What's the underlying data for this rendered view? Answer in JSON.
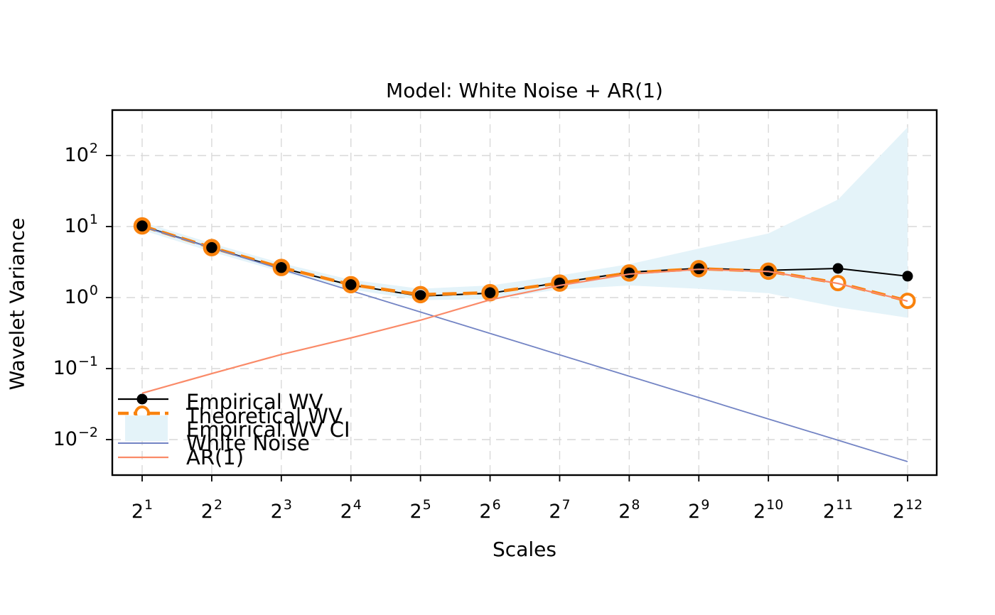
{
  "colors": {
    "empirical": "#000000",
    "theoretical": "#F9820D",
    "ci_band": "#E4F3F9",
    "white_noise": "#7384C4",
    "ar1": "#FA8A68",
    "gridline": "#D9D9D9",
    "frame": "#000000"
  },
  "chart_data": {
    "type": "line",
    "title": "Model: White Noise + AR(1)",
    "xlabel": "Scales",
    "ylabel": "Wavelet Variance",
    "x_scale": "log2",
    "y_scale": "log10",
    "grid": "both-dashed",
    "ylim": [
      0.0032,
      440
    ],
    "x_exponents": [
      1,
      2,
      3,
      4,
      5,
      6,
      7,
      8,
      9,
      10,
      11,
      12
    ],
    "x_tick_labels": {
      "base": "2",
      "exponents": [
        "1",
        "2",
        "3",
        "4",
        "5",
        "6",
        "7",
        "8",
        "9",
        "10",
        "11",
        "12"
      ]
    },
    "y_tick_labels": {
      "base": "10",
      "exponents": [
        "2",
        "1",
        "0",
        "−1",
        "−2"
      ],
      "values": [
        100,
        10,
        1,
        0.1,
        0.01
      ]
    },
    "series": [
      {
        "name": "Empirical WV",
        "style": "solid-line-filled-dot",
        "color": "#000000",
        "values": [
          10.2,
          5.0,
          2.6,
          1.5,
          1.05,
          1.15,
          1.62,
          2.28,
          2.58,
          2.42,
          2.57,
          2.0
        ]
      },
      {
        "name": "Theoretical WV",
        "style": "thick-dashed-line-open-circle",
        "color": "#F9820D",
        "values": [
          10.2,
          5.05,
          2.65,
          1.52,
          1.1,
          1.17,
          1.6,
          2.22,
          2.55,
          2.35,
          1.6,
          0.9
        ]
      },
      {
        "name": "Empirical WV CI",
        "style": "band",
        "color": "#E4F3F9",
        "lower": [
          8.9,
          4.4,
          2.3,
          1.3,
          0.92,
          0.95,
          1.3,
          1.48,
          1.33,
          1.15,
          0.73,
          0.52
        ],
        "upper": [
          11.6,
          5.8,
          3.05,
          1.78,
          1.33,
          1.48,
          2.05,
          2.95,
          4.9,
          8.0,
          24,
          250
        ]
      },
      {
        "name": "White Noise",
        "style": "thin-line",
        "color": "#7384C4",
        "values": [
          10,
          5,
          2.5,
          1.25,
          0.625,
          0.3125,
          0.1563,
          0.0781,
          0.0391,
          0.0195,
          0.0098,
          0.0049
        ]
      },
      {
        "name": "AR(1)",
        "style": "thin-line",
        "color": "#FA8A68",
        "values": [
          0.045,
          0.085,
          0.158,
          0.27,
          0.48,
          0.93,
          1.48,
          2.14,
          2.5,
          2.33,
          1.58,
          0.89
        ]
      }
    ],
    "legend": {
      "position": "lower-left",
      "items": [
        {
          "label": "Empirical WV",
          "swatch": "black-line-dot"
        },
        {
          "label": "Theoretical WV",
          "swatch": "orange-dashed-open-circle"
        },
        {
          "label": "Empirical WV CI",
          "swatch": "lightblue-patch"
        },
        {
          "label": "White Noise",
          "swatch": "periwinkle-line"
        },
        {
          "label": "AR(1)",
          "swatch": "salmon-line"
        }
      ]
    }
  }
}
